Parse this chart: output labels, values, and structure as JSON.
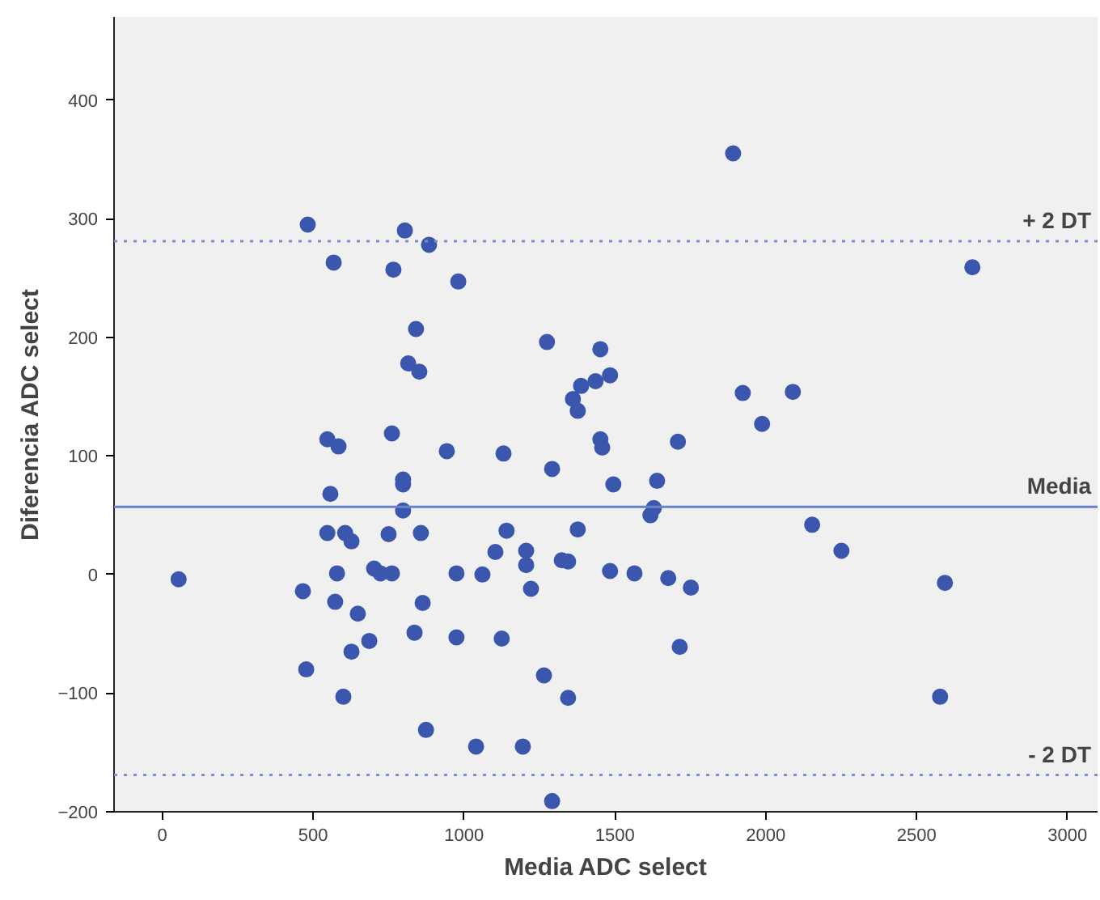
{
  "chart_data": {
    "type": "scatter",
    "xlabel": "Media ADC select",
    "ylabel": "Diferencia ADC select",
    "xlim": [
      -160,
      3100
    ],
    "ylim": [
      -200,
      470
    ],
    "xticks": [
      0,
      500,
      1000,
      1500,
      2000,
      2500,
      3000
    ],
    "yticks": [
      -200,
      -100,
      0,
      100,
      200,
      300,
      400
    ],
    "marker": "circle",
    "series": [
      {
        "color": "#3a57ad",
        "x": [
          54,
          466,
          477,
          547,
          557,
          579,
          573,
          600,
          606,
          627,
          648,
          627,
          686,
          702,
          723,
          750,
          761,
          798,
          798,
          798,
          836,
          857,
          863,
          874,
          975,
          975,
          1040,
          1061,
          1104,
          1141,
          1125,
          1206,
          1206,
          1222,
          1265,
          1195,
          1292,
          1292,
          1324,
          1345,
          1345,
          1377,
          1484,
          1495,
          1640,
          1629,
          1618,
          1565,
          1677,
          1752,
          1715,
          2154,
          2251,
          2594,
          2578,
          482,
          804,
          884,
          568,
          766,
          981,
          841,
          815,
          852,
          1275,
          1452,
          547,
          584,
          761,
          943,
          1131,
          1452,
          1458,
          1361,
          1388,
          1436,
          1484,
          1377,
          1892,
          2685,
          1924,
          2090,
          1988,
          1709
        ],
        "values": [
          -4,
          -14,
          -80,
          35,
          68,
          1,
          -23,
          -103,
          35,
          28,
          -33,
          -65,
          -56,
          5,
          1,
          34,
          1,
          80,
          76,
          54,
          -49,
          35,
          -24,
          -131,
          1,
          -53,
          -145,
          0,
          19,
          37,
          -54,
          20,
          8,
          -12,
          -85,
          -145,
          -191,
          89,
          12,
          11,
          -104,
          38,
          3,
          76,
          79,
          56,
          50,
          1,
          -3,
          -11,
          -61,
          42,
          20,
          -7,
          -103,
          295,
          290,
          278,
          263,
          257,
          247,
          207,
          178,
          171,
          196,
          190,
          114,
          108,
          119,
          104,
          102,
          114,
          107,
          148,
          159,
          163,
          168,
          138,
          355,
          259,
          153,
          154,
          127,
          112
        ]
      }
    ],
    "ref_lines": [
      {
        "axis": "y",
        "value": 281,
        "label": "+ 2 DT",
        "color": "#7a8fd0",
        "line_style": "dotted"
      },
      {
        "axis": "y",
        "value": 57,
        "label": "Media",
        "color": "#6a82c8",
        "line_style": "solid"
      },
      {
        "axis": "y",
        "value": -169,
        "label": "- 2 DT",
        "color": "#7a8fd0",
        "line_style": "dotted"
      }
    ]
  }
}
